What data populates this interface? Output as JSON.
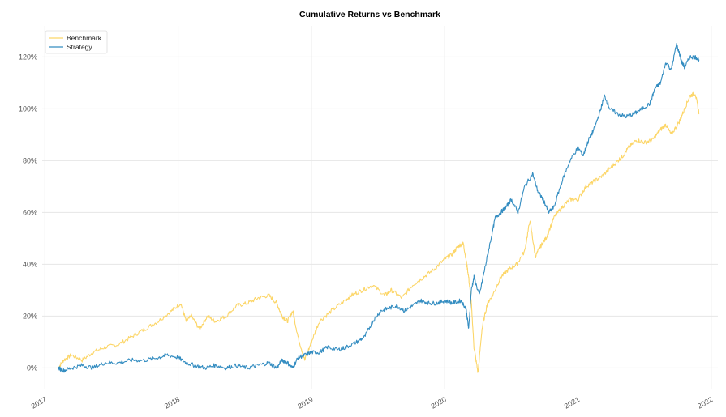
{
  "chart_data": {
    "type": "line",
    "title": "Cumulative Returns vs Benchmark",
    "xlabel": "",
    "ylabel": "",
    "x_ticks": [
      "2017",
      "2018",
      "2019",
      "2020",
      "2021",
      "2022"
    ],
    "y_ticks": [
      "0%",
      "20%",
      "40%",
      "60%",
      "80%",
      "100%",
      "120%"
    ],
    "xlim": [
      2016.98,
      2022.05
    ],
    "ylim": [
      -8,
      132
    ],
    "grid": true,
    "legend": "top-left",
    "series": [
      {
        "name": "Benchmark",
        "color": "#fcd669",
        "x": [
          2017.1,
          2017.14,
          2017.2,
          2017.28,
          2017.36,
          2017.45,
          2017.55,
          2017.65,
          2017.75,
          2017.85,
          2017.95,
          2018.02,
          2018.06,
          2018.1,
          2018.16,
          2018.22,
          2018.28,
          2018.36,
          2018.44,
          2018.52,
          2018.6,
          2018.68,
          2018.74,
          2018.78,
          2018.82,
          2018.86,
          2018.9,
          2018.95,
          2019.0,
          2019.06,
          2019.15,
          2019.25,
          2019.3,
          2019.38,
          2019.46,
          2019.55,
          2019.6,
          2019.68,
          2019.76,
          2019.84,
          2019.92,
          2020.0,
          2020.06,
          2020.1,
          2020.14,
          2020.16,
          2020.18,
          2020.2,
          2020.22,
          2020.25,
          2020.28,
          2020.32,
          2020.36,
          2020.42,
          2020.48,
          2020.54,
          2020.6,
          2020.64,
          2020.68,
          2020.72,
          2020.76,
          2020.82,
          2020.88,
          2020.94,
          2021.0,
          2021.06,
          2021.12,
          2021.18,
          2021.24,
          2021.3,
          2021.34,
          2021.38,
          2021.44,
          2021.5,
          2021.56,
          2021.62,
          2021.66,
          2021.7,
          2021.76,
          2021.8,
          2021.84,
          2021.88,
          2021.91
        ],
        "values": [
          0,
          3,
          5,
          3,
          6,
          8,
          9,
          12,
          15,
          18,
          22,
          25,
          18,
          20,
          15,
          20,
          18,
          20,
          24,
          25,
          27,
          28,
          25,
          20,
          18,
          22,
          12,
          3,
          10,
          18,
          22,
          26,
          28,
          30,
          32,
          28,
          30,
          27,
          32,
          35,
          38,
          42,
          44,
          47,
          48,
          42,
          35,
          25,
          8,
          -2,
          15,
          25,
          28,
          35,
          38,
          40,
          45,
          57,
          43,
          47,
          50,
          58,
          62,
          65,
          65,
          70,
          72,
          74,
          77,
          80,
          82,
          85,
          88,
          87,
          88,
          92,
          94,
          90,
          95,
          100,
          105,
          106,
          98
        ]
      },
      {
        "name": "Strategy",
        "color": "#348dc1",
        "x": [
          2017.1,
          2017.14,
          2017.2,
          2017.28,
          2017.36,
          2017.45,
          2017.55,
          2017.65,
          2017.75,
          2017.85,
          2017.92,
          2018.0,
          2018.06,
          2018.12,
          2018.2,
          2018.28,
          2018.36,
          2018.44,
          2018.52,
          2018.6,
          2018.68,
          2018.74,
          2018.78,
          2018.82,
          2018.86,
          2018.9,
          2018.95,
          2019.0,
          2019.06,
          2019.12,
          2019.2,
          2019.26,
          2019.34,
          2019.4,
          2019.46,
          2019.52,
          2019.58,
          2019.64,
          2019.7,
          2019.76,
          2019.82,
          2019.88,
          2019.94,
          2020.0,
          2020.06,
          2020.12,
          2020.16,
          2020.18,
          2020.2,
          2020.22,
          2020.26,
          2020.3,
          2020.34,
          2020.38,
          2020.42,
          2020.46,
          2020.5,
          2020.55,
          2020.6,
          2020.66,
          2020.7,
          2020.74,
          2020.78,
          2020.82,
          2020.88,
          2020.94,
          2021.0,
          2021.04,
          2021.08,
          2021.12,
          2021.16,
          2021.2,
          2021.24,
          2021.3,
          2021.36,
          2021.42,
          2021.48,
          2021.54,
          2021.58,
          2021.62,
          2021.66,
          2021.7,
          2021.74,
          2021.78,
          2021.8,
          2021.84,
          2021.88,
          2021.91
        ],
        "values": [
          0,
          -1,
          0,
          1,
          0,
          2,
          2,
          3,
          3,
          4,
          5,
          4,
          2,
          1,
          0,
          1,
          0,
          1,
          0,
          1,
          2,
          0,
          3,
          2,
          0,
          4,
          5,
          6,
          6,
          8,
          7,
          8,
          10,
          12,
          18,
          22,
          23,
          24,
          22,
          24,
          26,
          25,
          25,
          26,
          25,
          26,
          23,
          15,
          30,
          35,
          28,
          38,
          48,
          58,
          60,
          62,
          65,
          60,
          70,
          75,
          68,
          65,
          60,
          62,
          72,
          80,
          85,
          82,
          88,
          92,
          98,
          105,
          100,
          98,
          97,
          98,
          100,
          102,
          108,
          110,
          118,
          115,
          125,
          118,
          116,
          120,
          120,
          119
        ]
      }
    ]
  }
}
